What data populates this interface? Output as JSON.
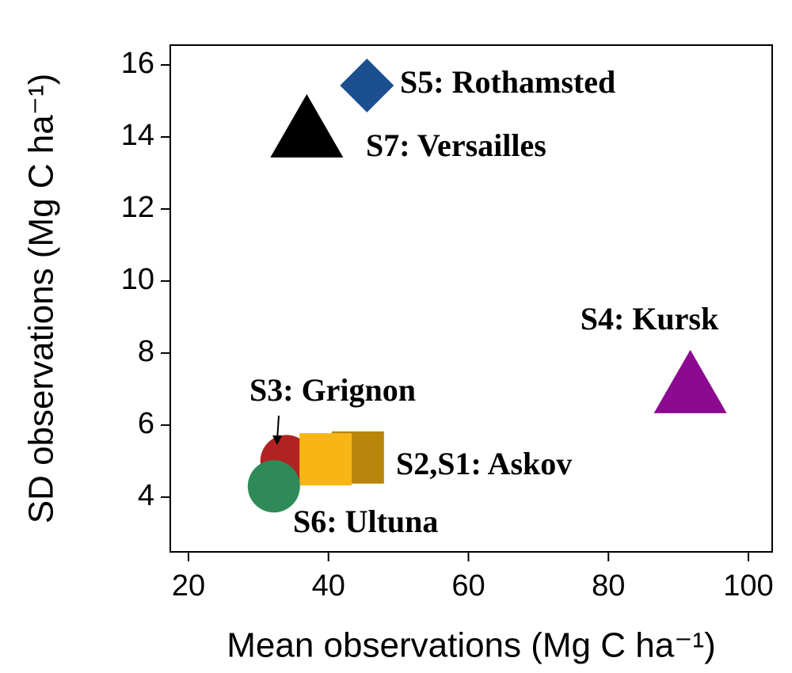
{
  "chart_data": {
    "type": "scatter",
    "xlabel": "Mean observations (Mg C ha⁻¹)",
    "ylabel": "SD observations (Mg C ha⁻¹)",
    "xlim": [
      17.4,
      103.4
    ],
    "xticks": [
      20,
      40,
      60,
      80,
      100
    ],
    "ylim": [
      2.48,
      16.55
    ],
    "yticks": [
      4,
      6,
      8,
      10,
      12,
      14,
      16
    ],
    "series": [
      {
        "name": "S5: Rothamsted",
        "marker": "diamond",
        "colors": [
          "#1b4f8f"
        ],
        "x": [
          45.5
        ],
        "values": [
          15.43
        ]
      },
      {
        "name": "S7: Versailles",
        "marker": "triangle",
        "colors": [
          "#000000"
        ],
        "x": [
          36.9
        ],
        "values": [
          14.2
        ]
      },
      {
        "name": "S4: Kursk",
        "marker": "triangle",
        "colors": [
          "#8b0a8f"
        ],
        "x": [
          91.7
        ],
        "values": [
          7.1
        ]
      },
      {
        "name": "S3: Grignon",
        "marker": "circle",
        "colors": [
          "#b22222"
        ],
        "x": [
          34.0
        ],
        "values": [
          5.0
        ]
      },
      {
        "name": "S2,S1: Askov",
        "marker": "square",
        "colors": [
          "#f7b516",
          "#b8860b"
        ],
        "x": [
          39.6,
          44.2
        ],
        "values": [
          5.05,
          5.1
        ]
      },
      {
        "name": "S6: Ultuna",
        "marker": "circle",
        "colors": [
          "#2e8b57"
        ],
        "x": [
          32.2
        ],
        "values": [
          4.3
        ]
      }
    ]
  }
}
